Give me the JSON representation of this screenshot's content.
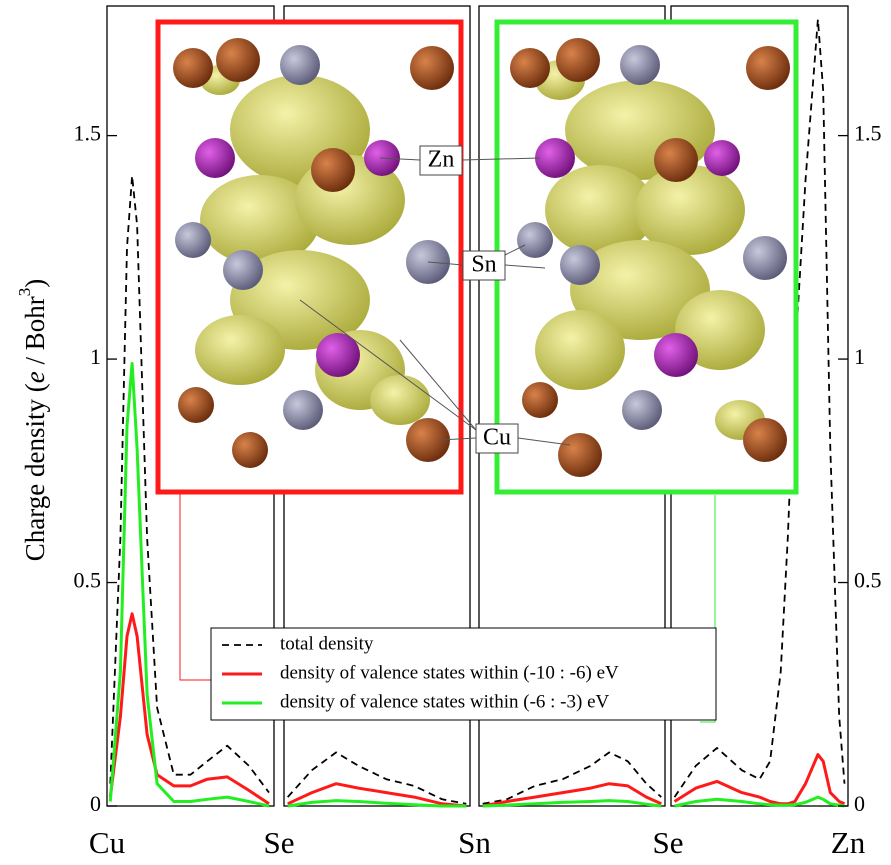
{
  "chart_data": {
    "type": "line",
    "y_label": [
      "Charge density (",
      "e",
      " / Bohr",
      "3",
      ")"
    ],
    "x": [
      0.02,
      0.08,
      0.12,
      0.15,
      0.18,
      0.24,
      0.3,
      0.4,
      0.5,
      0.6,
      0.72,
      0.85,
      0.97,
      1.02,
      1.15,
      1.28,
      1.4,
      1.55,
      1.7,
      1.85,
      1.98,
      2.02,
      2.15,
      2.3,
      2.45,
      2.6,
      2.7,
      2.8,
      2.9,
      2.98,
      3.02,
      3.14,
      3.26,
      3.4,
      3.5,
      3.56,
      3.62,
      3.66,
      3.7,
      3.76,
      3.83,
      3.86,
      3.9,
      3.95,
      3.98
    ],
    "xlim": [
      0,
      4
    ],
    "xticks": [
      {
        "value": 0,
        "label": "Cu"
      },
      {
        "value": 1,
        "label": "Se"
      },
      {
        "value": 2,
        "label": "Sn"
      },
      {
        "value": 3,
        "label": "Se"
      },
      {
        "value": 4,
        "label": "Zn"
      }
    ],
    "ylim": [
      0,
      1.79
    ],
    "yticks": [
      0,
      0.5,
      1,
      1.5
    ],
    "series": [
      {
        "name": "total density",
        "color": "#000000",
        "line_style": "dashed",
        "values": [
          0.05,
          0.6,
          1.25,
          1.41,
          1.3,
          0.6,
          0.22,
          0.07,
          0.07,
          0.1,
          0.135,
          0.09,
          0.03,
          0.02,
          0.08,
          0.12,
          0.09,
          0.06,
          0.045,
          0.015,
          0.005,
          0.005,
          0.015,
          0.045,
          0.06,
          0.09,
          0.12,
          0.1,
          0.05,
          0.02,
          0.02,
          0.09,
          0.13,
          0.08,
          0.06,
          0.1,
          0.3,
          0.6,
          1.0,
          1.4,
          1.76,
          1.6,
          0.8,
          0.2,
          0.05
        ]
      },
      {
        "name": "density of valence states within (-10 : -6) eV",
        "color": "#ff1a1a",
        "line_style": "solid",
        "values": [
          0.02,
          0.2,
          0.38,
          0.43,
          0.38,
          0.16,
          0.07,
          0.045,
          0.045,
          0.06,
          0.065,
          0.035,
          0.005,
          0.005,
          0.03,
          0.05,
          0.04,
          0.03,
          0.02,
          0.005,
          0.0,
          0.0,
          0.01,
          0.02,
          0.03,
          0.04,
          0.05,
          0.045,
          0.02,
          0.005,
          0.01,
          0.04,
          0.055,
          0.03,
          0.02,
          0.01,
          0.005,
          0.005,
          0.01,
          0.05,
          0.115,
          0.1,
          0.03,
          0.01,
          0.005
        ]
      },
      {
        "name": "density of valence states within (-6 : -3) eV",
        "color": "#22ee22",
        "line_style": "solid",
        "values": [
          0.01,
          0.3,
          0.85,
          0.99,
          0.8,
          0.25,
          0.05,
          0.01,
          0.01,
          0.015,
          0.02,
          0.01,
          0.0,
          0.0,
          0.008,
          0.012,
          0.01,
          0.006,
          0.003,
          0.0,
          0.0,
          0.0,
          0.002,
          0.005,
          0.008,
          0.01,
          0.012,
          0.01,
          0.004,
          0.0,
          0.0,
          0.01,
          0.015,
          0.01,
          0.005,
          0.003,
          0.002,
          0.002,
          0.003,
          0.008,
          0.02,
          0.015,
          0.005,
          0.002,
          0.0
        ]
      }
    ],
    "annotations": [
      "Zn",
      "Sn",
      "Cu"
    ]
  }
}
